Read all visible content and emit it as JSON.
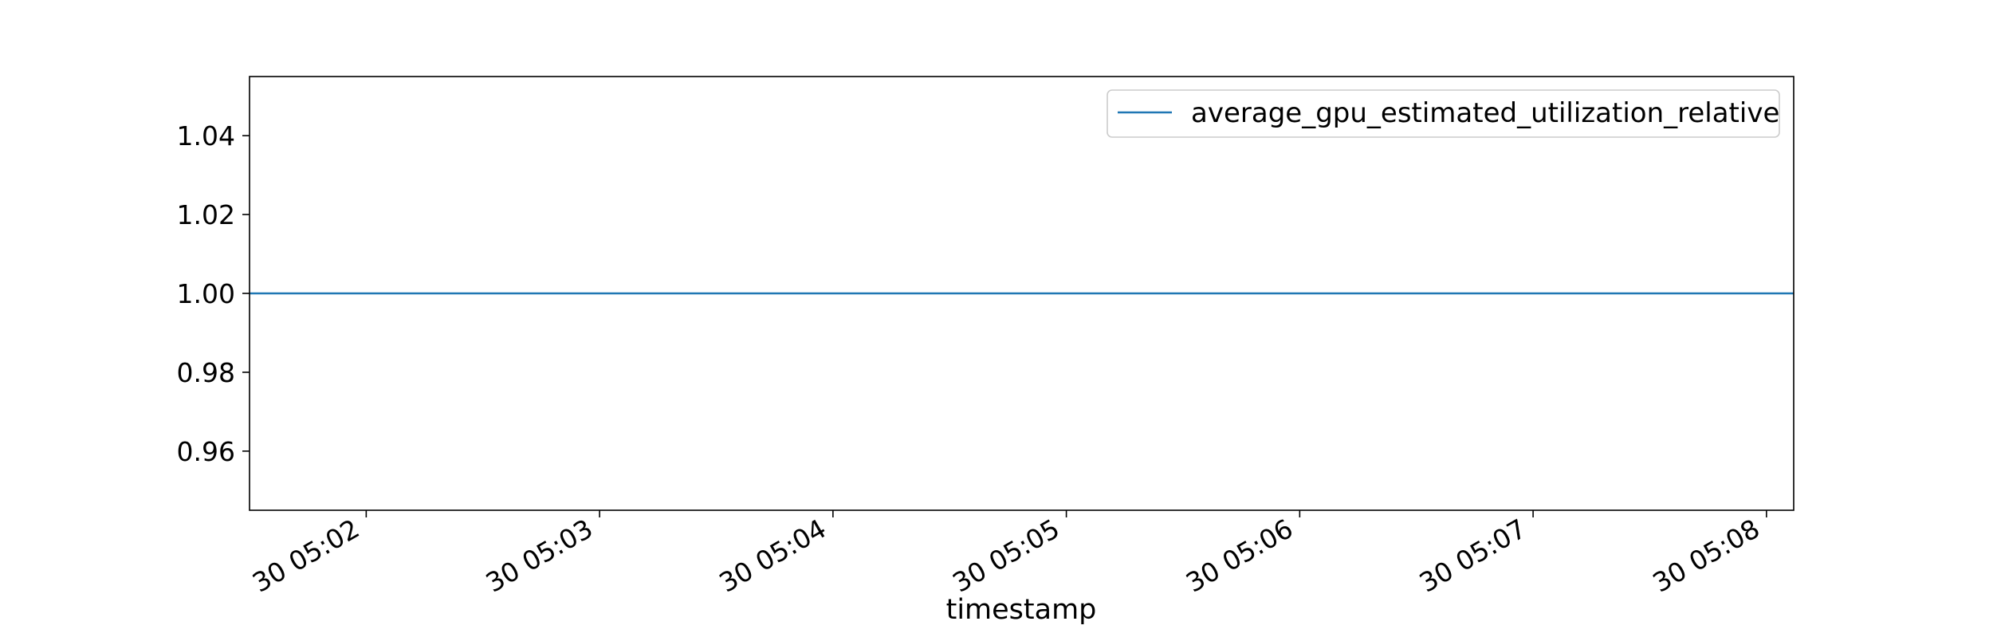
{
  "chart_data": {
    "type": "line",
    "title": "",
    "xlabel": "timestamp",
    "ylabel": "",
    "x": [
      "05:01:30",
      "05:08:07"
    ],
    "series": [
      {
        "name": "average_gpu_estimated_utilization_relative",
        "color": "#1f77b4",
        "values": [
          1.0,
          1.0
        ]
      }
    ],
    "xlim": [
      "05:01:30",
      "05:08:07"
    ],
    "ylim": [
      0.945,
      1.055
    ],
    "yticks": [
      0.96,
      0.98,
      1.0,
      1.02,
      1.04
    ],
    "ytick_labels": [
      "0.96",
      "0.98",
      "1.00",
      "1.02",
      "1.04"
    ],
    "xticks": [
      "05:02",
      "05:03",
      "05:04",
      "05:05",
      "05:06",
      "05:07",
      "05:08"
    ],
    "xtick_labels": [
      "30 05:02",
      "30 05:03",
      "30 05:04",
      "30 05:05",
      "30 05:06",
      "30 05:07",
      "30 05:08"
    ],
    "grid": false,
    "legend": "top-right"
  }
}
